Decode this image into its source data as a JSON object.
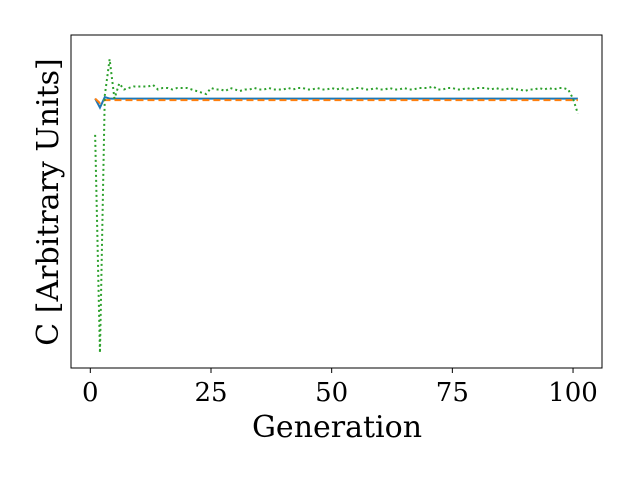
{
  "chart_data": {
    "type": "line",
    "title": "",
    "xlabel": "Generation",
    "ylabel": "C [Arbitrary Units]",
    "xlim": [
      -4,
      106
    ],
    "ylim": [
      -0.05,
      1.05
    ],
    "xticks": [
      0,
      25,
      50,
      75,
      100
    ],
    "yticks_visible": false,
    "grid": false,
    "legend": "none",
    "series": [
      {
        "color": "#1f77b4",
        "style": "solid",
        "x": [
          1,
          2,
          3,
          4,
          5,
          10,
          20,
          30,
          40,
          50,
          60,
          70,
          80,
          90,
          100,
          101
        ],
        "y": [
          0.84,
          0.81,
          0.845,
          0.84,
          0.84,
          0.84,
          0.84,
          0.84,
          0.84,
          0.84,
          0.84,
          0.84,
          0.84,
          0.84,
          0.84,
          0.84
        ]
      },
      {
        "color": "#ff7f0e",
        "style": "dashed",
        "x": [
          1,
          2,
          3,
          4,
          5,
          10,
          20,
          30,
          40,
          50,
          60,
          70,
          80,
          90,
          100,
          101
        ],
        "y": [
          0.84,
          0.825,
          0.835,
          0.835,
          0.835,
          0.835,
          0.835,
          0.835,
          0.835,
          0.835,
          0.835,
          0.835,
          0.835,
          0.835,
          0.835,
          0.835
        ]
      },
      {
        "color": "#2ca02c",
        "style": "dotted",
        "x": [
          1,
          2,
          3,
          4,
          5,
          6,
          7,
          8,
          9,
          10,
          11,
          12,
          13,
          14,
          15,
          16,
          17,
          18,
          19,
          20,
          21,
          22,
          23,
          24,
          25,
          26,
          27,
          28,
          29,
          30,
          31,
          32,
          33,
          34,
          35,
          36,
          37,
          38,
          39,
          40,
          41,
          42,
          43,
          44,
          45,
          46,
          47,
          48,
          49,
          50,
          51,
          52,
          53,
          54,
          55,
          56,
          57,
          58,
          59,
          60,
          61,
          62,
          63,
          64,
          65,
          66,
          67,
          68,
          69,
          70,
          71,
          72,
          73,
          74,
          75,
          76,
          77,
          78,
          79,
          80,
          81,
          82,
          83,
          84,
          85,
          86,
          87,
          88,
          89,
          90,
          91,
          92,
          93,
          94,
          95,
          96,
          97,
          98,
          99,
          100,
          101
        ],
        "y": [
          0.72,
          0.0,
          0.85,
          0.97,
          0.84,
          0.89,
          0.87,
          0.875,
          0.88,
          0.88,
          0.88,
          0.88,
          0.885,
          0.87,
          0.875,
          0.875,
          0.87,
          0.875,
          0.875,
          0.875,
          0.87,
          0.865,
          0.86,
          0.855,
          0.875,
          0.87,
          0.87,
          0.865,
          0.875,
          0.87,
          0.865,
          0.87,
          0.87,
          0.875,
          0.87,
          0.87,
          0.875,
          0.87,
          0.87,
          0.87,
          0.875,
          0.87,
          0.875,
          0.875,
          0.87,
          0.87,
          0.875,
          0.87,
          0.87,
          0.875,
          0.87,
          0.875,
          0.87,
          0.87,
          0.875,
          0.875,
          0.87,
          0.87,
          0.875,
          0.87,
          0.87,
          0.875,
          0.87,
          0.87,
          0.875,
          0.87,
          0.87,
          0.875,
          0.875,
          0.875,
          0.88,
          0.87,
          0.87,
          0.875,
          0.875,
          0.87,
          0.87,
          0.875,
          0.87,
          0.875,
          0.875,
          0.875,
          0.87,
          0.875,
          0.87,
          0.87,
          0.875,
          0.87,
          0.87,
          0.865,
          0.87,
          0.87,
          0.875,
          0.87,
          0.875,
          0.87,
          0.875,
          0.875,
          0.87,
          0.84,
          0.79
        ]
      }
    ]
  }
}
